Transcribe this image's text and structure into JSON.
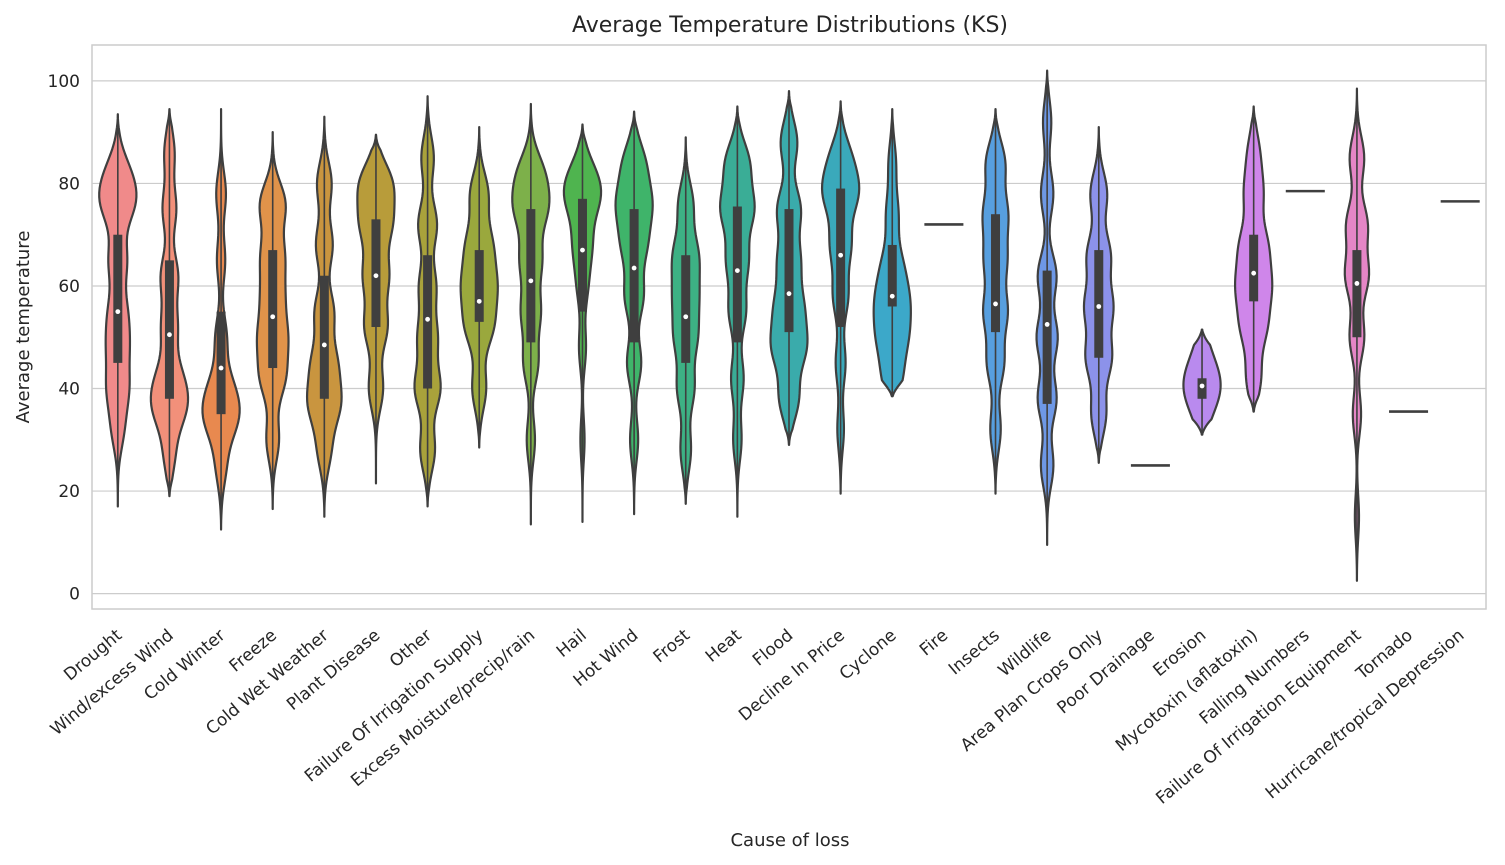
{
  "chart_data": {
    "type": "violin",
    "title": "Average Temperature Distributions (KS)",
    "xlabel": "Cause of loss",
    "ylabel": "Average temperature",
    "ylim": [
      -3,
      107
    ],
    "yticks": [
      0,
      20,
      40,
      60,
      80,
      100
    ],
    "grid": true,
    "categories": [
      {
        "label": "Drought",
        "color": "#f08a8a",
        "min": 17,
        "max": 93.5,
        "q1": 45,
        "q3": 70,
        "median": 55,
        "peaks": [
          [
            32,
            0.35
          ],
          [
            40,
            0.6
          ],
          [
            48,
            0.55
          ],
          [
            55,
            0.5
          ],
          [
            65,
            0.55
          ],
          [
            76,
            0.9
          ],
          [
            82,
            0.6
          ]
        ]
      },
      {
        "label": "Wind/excess Wind",
        "color": "#f2907a",
        "min": 19,
        "max": 94.5,
        "q1": 38,
        "q3": 65,
        "median": 50.5,
        "peaks": [
          [
            27,
            0.3
          ],
          [
            36,
            0.8
          ],
          [
            42,
            0.6
          ],
          [
            52,
            0.45
          ],
          [
            62,
            0.5
          ],
          [
            75,
            0.4
          ],
          [
            86,
            0.3
          ]
        ]
      },
      {
        "label": "Cold Winter",
        "color": "#e8894f",
        "min": 12.5,
        "max": 94.5,
        "q1": 35,
        "q3": 55,
        "median": 44,
        "peaks": [
          [
            25,
            0.35
          ],
          [
            34,
            1.0
          ],
          [
            40,
            0.7
          ],
          [
            50,
            0.4
          ],
          [
            65,
            0.3
          ],
          [
            78,
            0.35
          ]
        ]
      },
      {
        "label": "Freeze",
        "color": "#e0934a",
        "min": 16.5,
        "max": 90,
        "q1": 44,
        "q3": 67,
        "median": 54,
        "peaks": [
          [
            30,
            0.3
          ],
          [
            42,
            0.55
          ],
          [
            50,
            0.6
          ],
          [
            58,
            0.45
          ],
          [
            66,
            0.5
          ],
          [
            76,
            0.6
          ]
        ]
      },
      {
        "label": "Cold Wet Weather",
        "color": "#c9953f",
        "min": 15,
        "max": 93,
        "q1": 38,
        "q3": 62,
        "median": 48.5,
        "peaks": [
          [
            28,
            0.3
          ],
          [
            37,
            0.7
          ],
          [
            45,
            0.55
          ],
          [
            55,
            0.45
          ],
          [
            68,
            0.4
          ],
          [
            80,
            0.35
          ]
        ]
      },
      {
        "label": "Plant Disease",
        "color": "#b89c3a",
        "min": 21.5,
        "max": 89.5,
        "q1": 52,
        "q3": 73,
        "median": 62,
        "peaks": [
          [
            40,
            0.35
          ],
          [
            52,
            0.55
          ],
          [
            62,
            0.6
          ],
          [
            72,
            0.7
          ],
          [
            80,
            0.75
          ]
        ]
      },
      {
        "label": "Other",
        "color": "#a9a23b",
        "min": 17,
        "max": 97,
        "q1": 40,
        "q3": 66,
        "median": 53.5,
        "peaks": [
          [
            28,
            0.35
          ],
          [
            40,
            0.6
          ],
          [
            50,
            0.45
          ],
          [
            60,
            0.4
          ],
          [
            72,
            0.45
          ],
          [
            85,
            0.3
          ]
        ]
      },
      {
        "label": "Failure Of Irrigation Supply",
        "color": "#9aa83d",
        "min": 28.5,
        "max": 91,
        "q1": 53,
        "q3": 67,
        "median": 57,
        "peaks": [
          [
            40,
            0.35
          ],
          [
            52,
            0.65
          ],
          [
            60,
            0.75
          ],
          [
            68,
            0.6
          ],
          [
            78,
            0.45
          ]
        ]
      },
      {
        "label": "Excess Moisture/precip/rain",
        "color": "#7db04a",
        "min": 13.5,
        "max": 95.5,
        "q1": 49,
        "q3": 75,
        "median": 61,
        "peaks": [
          [
            30,
            0.2
          ],
          [
            45,
            0.35
          ],
          [
            55,
            0.45
          ],
          [
            65,
            0.5
          ],
          [
            75,
            0.7
          ],
          [
            82,
            0.55
          ]
        ]
      },
      {
        "label": "Hail",
        "color": "#4fb44f",
        "min": 14,
        "max": 91.5,
        "q1": 55,
        "q3": 77,
        "median": 67,
        "peaks": [
          [
            30,
            0.15
          ],
          [
            48,
            0.25
          ],
          [
            60,
            0.35
          ],
          [
            68,
            0.6
          ],
          [
            77,
            0.95
          ],
          [
            82,
            0.6
          ]
        ]
      },
      {
        "label": "Hot Wind",
        "color": "#3fb46a",
        "min": 15.5,
        "max": 94,
        "q1": 49,
        "q3": 75,
        "median": 63.5,
        "peaks": [
          [
            30,
            0.2
          ],
          [
            45,
            0.35
          ],
          [
            58,
            0.45
          ],
          [
            68,
            0.55
          ],
          [
            76,
            0.75
          ],
          [
            84,
            0.5
          ]
        ]
      },
      {
        "label": "Frost",
        "color": "#3db184",
        "min": 17.5,
        "max": 89,
        "q1": 45,
        "q3": 66,
        "median": 54,
        "peaks": [
          [
            28,
            0.25
          ],
          [
            40,
            0.4
          ],
          [
            50,
            0.5
          ],
          [
            58,
            0.5
          ],
          [
            66,
            0.55
          ],
          [
            76,
            0.35
          ]
        ]
      },
      {
        "label": "Heat",
        "color": "#3aad96",
        "min": 15,
        "max": 95,
        "q1": 49,
        "q3": 75.5,
        "median": 63,
        "peaks": [
          [
            30,
            0.2
          ],
          [
            42,
            0.3
          ],
          [
            55,
            0.4
          ],
          [
            65,
            0.5
          ],
          [
            75,
            0.75
          ],
          [
            84,
            0.55
          ]
        ]
      },
      {
        "label": "Flood",
        "color": "#3aabab",
        "min": 29,
        "max": 98,
        "q1": 51,
        "q3": 75,
        "median": 58.5,
        "peaks": [
          [
            38,
            0.45
          ],
          [
            48,
            0.75
          ],
          [
            56,
            0.6
          ],
          [
            65,
            0.5
          ],
          [
            75,
            0.55
          ],
          [
            88,
            0.4
          ]
        ]
      },
      {
        "label": "Decline In Price",
        "color": "#3aa9bb",
        "min": 19.5,
        "max": 96,
        "q1": 52,
        "q3": 79,
        "median": 66,
        "peaks": [
          [
            32,
            0.2
          ],
          [
            45,
            0.3
          ],
          [
            58,
            0.45
          ],
          [
            68,
            0.6
          ],
          [
            78,
            0.95
          ],
          [
            85,
            0.55
          ]
        ]
      },
      {
        "label": "Cyclone",
        "color": "#3ca8c9",
        "min": 38.5,
        "max": 94.5,
        "q1": 56,
        "q3": 68,
        "median": 58,
        "peaks": [
          [
            42,
            0.6
          ],
          [
            50,
            0.85
          ],
          [
            57,
            0.9
          ],
          [
            64,
            0.6
          ],
          [
            74,
            0.4
          ],
          [
            84,
            0.25
          ]
        ]
      },
      {
        "label": "Fire",
        "color": "#46a5d6",
        "min": 72,
        "max": 72,
        "q1": 72,
        "q3": 72,
        "median": 72,
        "peaks": []
      },
      {
        "label": "Insects",
        "color": "#579fdf",
        "min": 19.5,
        "max": 94.5,
        "q1": 51,
        "q3": 74,
        "median": 56.5,
        "peaks": [
          [
            32,
            0.25
          ],
          [
            45,
            0.4
          ],
          [
            55,
            0.55
          ],
          [
            65,
            0.5
          ],
          [
            74,
            0.55
          ],
          [
            84,
            0.45
          ]
        ]
      },
      {
        "label": "Wildlife",
        "color": "#6e98e6",
        "min": 9.5,
        "max": 102,
        "q1": 37,
        "q3": 63,
        "median": 52.5,
        "peaks": [
          [
            25,
            0.3
          ],
          [
            38,
            0.45
          ],
          [
            50,
            0.5
          ],
          [
            62,
            0.45
          ],
          [
            78,
            0.3
          ],
          [
            92,
            0.2
          ]
        ]
      },
      {
        "label": "Area Plan Crops Only",
        "color": "#8c92ea",
        "min": 25.5,
        "max": 91,
        "q1": 46,
        "q3": 67,
        "median": 56,
        "peaks": [
          [
            35,
            0.35
          ],
          [
            46,
            0.6
          ],
          [
            56,
            0.65
          ],
          [
            66,
            0.55
          ],
          [
            78,
            0.4
          ]
        ]
      },
      {
        "label": "Poor Drainage",
        "color": "#a78ded",
        "min": 25,
        "max": 25,
        "q1": 25,
        "q3": 25,
        "median": 25,
        "peaks": []
      },
      {
        "label": "Erosion",
        "color": "#b98aee",
        "min": 31,
        "max": 51.5,
        "q1": 38,
        "q3": 42,
        "median": 40.5,
        "peaks": [
          [
            34,
            0.6
          ],
          [
            39,
            1.45
          ],
          [
            42,
            1.2
          ],
          [
            46,
            0.7
          ],
          [
            50,
            0.25
          ]
        ]
      },
      {
        "label": "Mycotoxin (aflatoxin)",
        "color": "#cf86ea",
        "min": 35.5,
        "max": 95,
        "q1": 57,
        "q3": 70,
        "median": 62.5,
        "peaks": [
          [
            42,
            0.45
          ],
          [
            52,
            0.75
          ],
          [
            60,
            0.95
          ],
          [
            68,
            0.8
          ],
          [
            78,
            0.55
          ],
          [
            86,
            0.35
          ]
        ]
      },
      {
        "label": "Falling Numbers",
        "color": "#dd83db",
        "min": 78.5,
        "max": 78.5,
        "q1": 78.5,
        "q3": 78.5,
        "median": 78.5,
        "peaks": []
      },
      {
        "label": "Failure Of Irrigation Equipment",
        "color": "#e586c6",
        "min": 2.5,
        "max": 98.5,
        "q1": 50,
        "q3": 67,
        "median": 60.5,
        "peaks": [
          [
            15,
            0.1
          ],
          [
            35,
            0.2
          ],
          [
            50,
            0.35
          ],
          [
            62,
            0.55
          ],
          [
            72,
            0.5
          ],
          [
            85,
            0.35
          ]
        ]
      },
      {
        "label": "Tornado",
        "color": "#e88bb3",
        "min": 35.5,
        "max": 35.5,
        "q1": 35.5,
        "q3": 35.5,
        "median": 35.5,
        "peaks": []
      },
      {
        "label": "Hurricane/tropical Depression",
        "color": "#ec8ca2",
        "min": 76.5,
        "max": 76.5,
        "q1": 76.5,
        "q3": 76.5,
        "median": 76.5,
        "peaks": []
      }
    ]
  }
}
